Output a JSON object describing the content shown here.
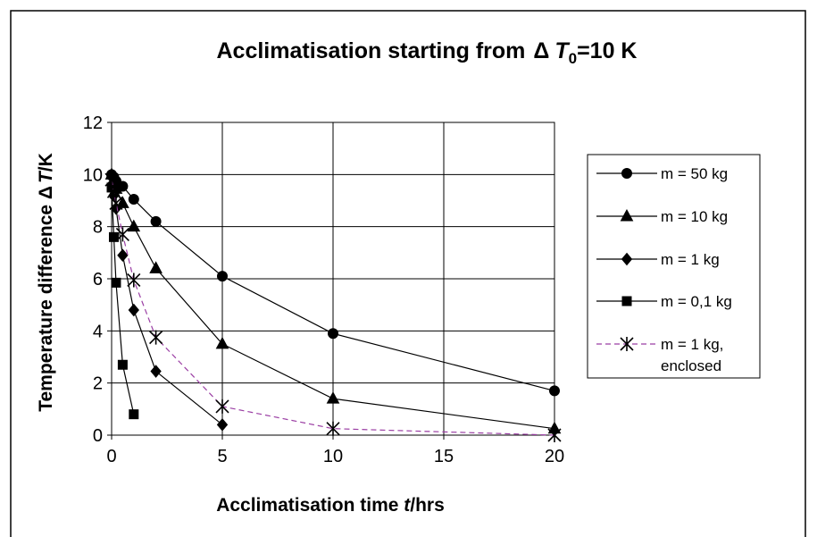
{
  "chart_data": {
    "type": "line",
    "title": {
      "prefix": "Acclimatisation starting from ",
      "delta": "Δ",
      "symbol": "T",
      "subscript": "0",
      "suffix": "=10 K"
    },
    "xlabel": {
      "prefix": "Acclimatisation time ",
      "symbol": "t",
      "suffix": "/hrs"
    },
    "ylabel": {
      "prefix": "Temperature difference ",
      "delta": "Δ",
      "symbol": "T",
      "suffix": "/K"
    },
    "xlim": [
      0,
      20
    ],
    "ylim": [
      0,
      12
    ],
    "x_ticks": [
      0,
      5,
      10,
      15,
      20
    ],
    "y_ticks": [
      0,
      2,
      4,
      6,
      8,
      10,
      12
    ],
    "grid": true,
    "legend_position": "right",
    "series": [
      {
        "name": "m = 50 kg",
        "marker": "circle",
        "line_style": "solid",
        "color": "#000000",
        "x": [
          0,
          0.1,
          0.2,
          0.5,
          1,
          2,
          5,
          10,
          20
        ],
        "y": [
          10,
          9.9,
          9.75,
          9.55,
          9.05,
          8.2,
          6.1,
          3.9,
          1.7
        ]
      },
      {
        "name": "m = 10 kg",
        "marker": "triangle",
        "line_style": "solid",
        "color": "#000000",
        "x": [
          0,
          0.1,
          0.2,
          0.5,
          1,
          2,
          5,
          10,
          20
        ],
        "y": [
          10,
          9.75,
          9.45,
          8.9,
          8,
          6.4,
          3.5,
          1.4,
          0.25
        ]
      },
      {
        "name": "m = 1 kg",
        "marker": "diamond",
        "line_style": "solid",
        "color": "#000000",
        "x": [
          0,
          0.1,
          0.2,
          0.5,
          1,
          2,
          5
        ],
        "y": [
          9.9,
          9.2,
          8.7,
          6.9,
          4.8,
          2.45,
          0.4
        ]
      },
      {
        "name": "m = 0,1 kg",
        "marker": "square",
        "line_style": "solid",
        "color": "#000000",
        "x": [
          0,
          0.1,
          0.2,
          0.5,
          1
        ],
        "y": [
          9.5,
          7.6,
          5.85,
          2.7,
          0.8
        ]
      },
      {
        "name": "m = 1 kg, enclosed",
        "legend_lines": [
          "m = 1 kg,",
          "enclosed"
        ],
        "marker": "star",
        "line_style": "dashed",
        "color": "#9b3fa4",
        "x": [
          0,
          0.1,
          0.2,
          0.5,
          1,
          2,
          5,
          10,
          20
        ],
        "y": [
          9.8,
          9.35,
          8.9,
          7.7,
          5.95,
          3.75,
          1.1,
          0.25,
          0
        ]
      }
    ]
  }
}
